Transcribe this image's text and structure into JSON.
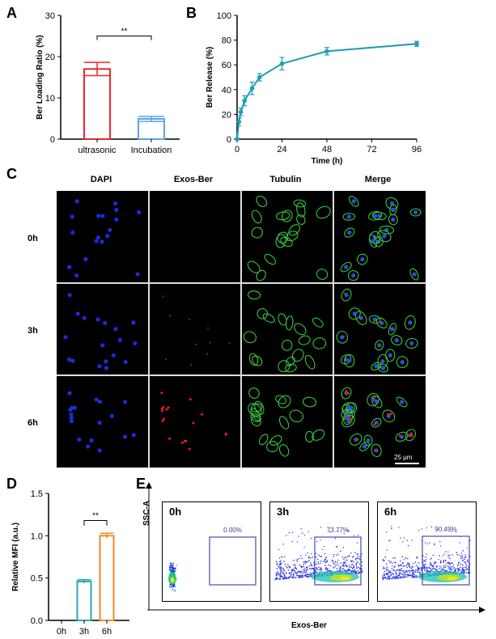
{
  "panels": {
    "a": "A",
    "b": "B",
    "c": "C",
    "d": "D",
    "e": "E"
  },
  "chart_data": [
    {
      "id": "A",
      "type": "bar",
      "ylabel": "Ber Loading Ratio (%)",
      "categories": [
        "ultrasonic",
        "Incubation"
      ],
      "values": [
        17.0,
        4.9
      ],
      "errors": [
        1.6,
        0.6
      ],
      "colors": [
        "#e8282d",
        "#5ba4e6"
      ],
      "ylim": [
        0,
        30
      ],
      "yticks": [
        "0",
        "10",
        "20",
        "30"
      ],
      "significance": "**"
    },
    {
      "id": "B",
      "type": "line",
      "xlabel": "Time (h)",
      "ylabel": "Ber Release (%)",
      "x": [
        0,
        1,
        2,
        4,
        8,
        12,
        24,
        48,
        96
      ],
      "y": [
        0,
        14,
        22,
        31,
        41,
        50,
        61,
        71,
        77
      ],
      "errors": [
        0,
        3,
        3,
        4,
        5,
        3,
        5,
        3,
        2
      ],
      "color": "#1f9eb5",
      "xlim": [
        0,
        96
      ],
      "ylim": [
        0,
        100
      ],
      "xticks": [
        "0",
        "24",
        "48",
        "72",
        "96"
      ],
      "yticks": [
        "0",
        "20",
        "40",
        "60",
        "80",
        "100"
      ]
    },
    {
      "id": "D",
      "type": "bar",
      "ylabel": "Relative MFI (a.u.)",
      "categories": [
        "0h",
        "3h",
        "6h"
      ],
      "values": [
        0,
        0.46,
        1.0
      ],
      "errors": [
        0,
        0.02,
        0.03
      ],
      "colors": [
        "#000000",
        "#27a8b8",
        "#f08a2a"
      ],
      "ylim": [
        0,
        1.5
      ],
      "yticks": [
        "0.0",
        "0.5",
        "1.0",
        "1.5"
      ],
      "significance": "**"
    }
  ],
  "microscopy": {
    "columns": [
      "DAPI",
      "Exos-Ber",
      "Tubulin",
      "Merge"
    ],
    "rows": [
      "0h",
      "3h",
      "6h"
    ],
    "scalebar": "25 μm"
  },
  "flow": {
    "ylabel": "SSC-A",
    "xlabel": "Exos-Ber",
    "panels": [
      {
        "label": "0h",
        "percent": "0.00%"
      },
      {
        "label": "3h",
        "percent": "73.77%"
      },
      {
        "label": "6h",
        "percent": "90.49%"
      }
    ]
  }
}
